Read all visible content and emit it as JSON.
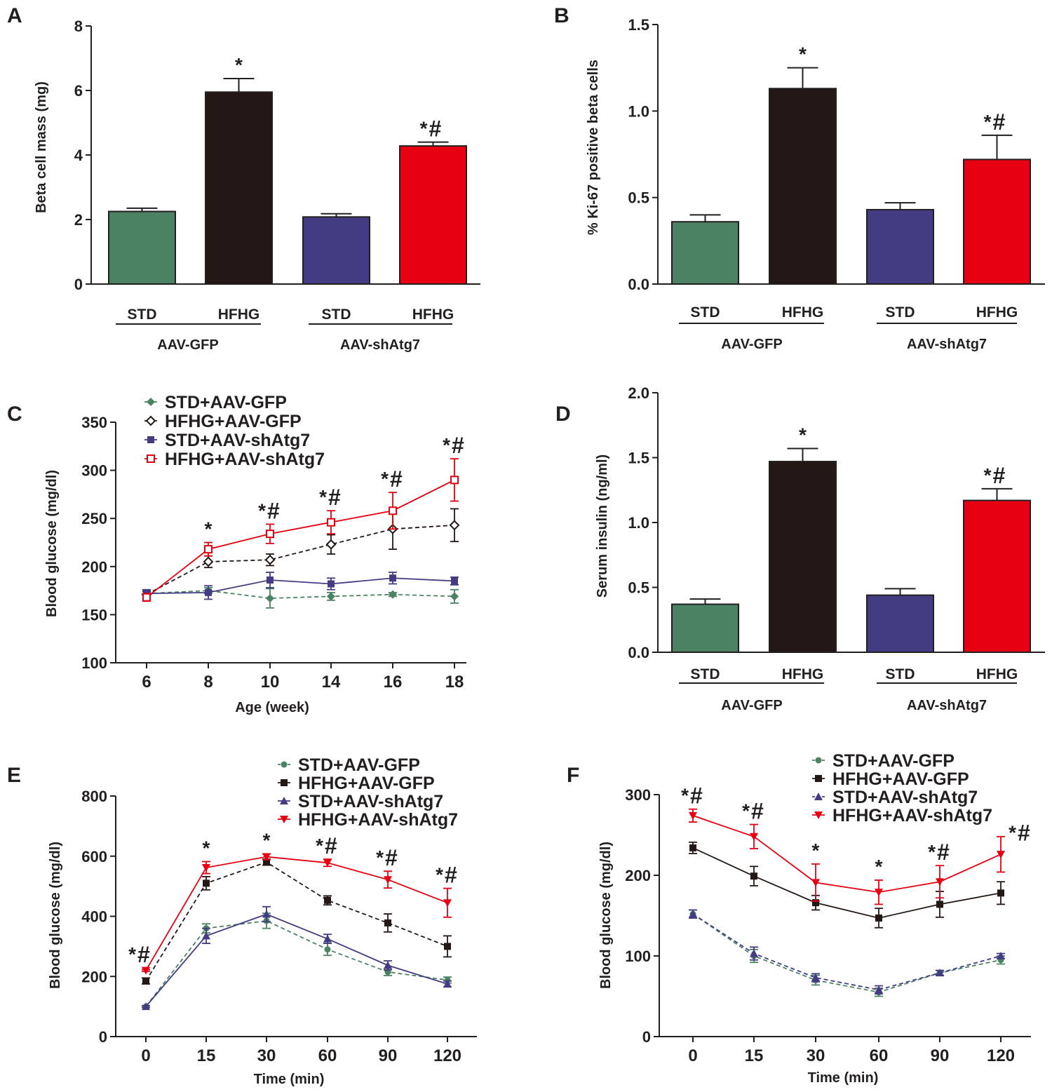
{
  "colors": {
    "green": "#4b8264",
    "black": "#231815",
    "blue": "#433c82",
    "red": "#e60012",
    "axis": "#231f20"
  },
  "chart_data": [
    {
      "panel": "A",
      "type": "bar",
      "ylabel": "Beta cell mass (mg)",
      "ylim": [
        0,
        8
      ],
      "yticks": [
        "0",
        "2",
        "4",
        "6",
        "8"
      ],
      "categories": [
        "STD",
        "HFHG",
        "STD",
        "HFHG"
      ],
      "groups": [
        "AAV-GFP",
        "AAV-shAtg7"
      ],
      "values": [
        2.25,
        5.95,
        2.08,
        4.28
      ],
      "errors": [
        0.1,
        0.42,
        0.1,
        0.12
      ],
      "colors": [
        "green",
        "black",
        "blue",
        "red"
      ],
      "annotations": [
        {
          "bar": 1,
          "star": "*",
          "hash": ""
        },
        {
          "bar": 3,
          "star": "*",
          "hash": "#"
        }
      ]
    },
    {
      "panel": "B",
      "type": "bar",
      "ylabel": "% Ki-67 positive beta cells",
      "ylim": [
        0,
        1.5
      ],
      "yticks": [
        "0.0",
        "0.5",
        "1.0",
        "1.5"
      ],
      "categories": [
        "STD",
        "HFHG",
        "STD",
        "HFHG"
      ],
      "groups": [
        "AAV-GFP",
        "AAV-shAtg7"
      ],
      "values": [
        0.36,
        1.13,
        0.43,
        0.72
      ],
      "errors": [
        0.04,
        0.12,
        0.04,
        0.14
      ],
      "colors": [
        "green",
        "black",
        "blue",
        "red"
      ],
      "annotations": [
        {
          "bar": 1,
          "star": "*",
          "hash": ""
        },
        {
          "bar": 3,
          "star": "*",
          "hash": "#"
        }
      ]
    },
    {
      "panel": "C",
      "type": "line",
      "xlabel": "Age (week)",
      "ylabel": "Blood glucose (mg/dl)",
      "ylim": [
        100,
        350
      ],
      "yticks": [
        "100",
        "150",
        "200",
        "250",
        "300",
        "350"
      ],
      "x": [
        "6",
        "8",
        "10",
        "14",
        "16",
        "18"
      ],
      "series": [
        {
          "name": "STD+AAV-GFP",
          "color": "green",
          "marker": "diamond",
          "dash": true,
          "values": [
            172,
            175,
            167,
            169,
            171,
            169
          ],
          "errors": [
            3,
            3,
            10,
            4,
            2,
            7
          ]
        },
        {
          "name": "HFHG+AAV-GFP",
          "color": "black",
          "marker": "diamond-open",
          "dash": true,
          "values": [
            171,
            205,
            207,
            223,
            239,
            243
          ],
          "errors": [
            3,
            6,
            6,
            10,
            21,
            17
          ]
        },
        {
          "name": "STD+AAV-shAtg7",
          "color": "blue",
          "marker": "square",
          "dash": false,
          "values": [
            172,
            173,
            186,
            182,
            188,
            185
          ],
          "errors": [
            4,
            7,
            8,
            6,
            6,
            4
          ]
        },
        {
          "name": "HFHG+AAV-shAtg7",
          "color": "red",
          "marker": "square-open",
          "dash": false,
          "values": [
            168,
            218,
            234,
            246,
            258,
            290
          ],
          "errors": [
            4,
            7,
            10,
            12,
            19,
            22
          ]
        }
      ],
      "annotations": [
        {
          "x": 1,
          "star": "*",
          "hash": ""
        },
        {
          "x": 2,
          "star": "*",
          "hash": "#"
        },
        {
          "x": 3,
          "star": "*",
          "hash": "#"
        },
        {
          "x": 4,
          "star": "*",
          "hash": "#"
        },
        {
          "x": 5,
          "star": "*",
          "hash": "#"
        }
      ],
      "legend": "top-left"
    },
    {
      "panel": "D",
      "type": "bar",
      "ylabel": "Serum insulin (ng/ml)",
      "ylim": [
        0,
        2
      ],
      "yticks": [
        "0.0",
        "0.5",
        "1.0",
        "1.5",
        "2.0"
      ],
      "categories": [
        "STD",
        "HFHG",
        "STD",
        "HFHG"
      ],
      "groups": [
        "AAV-GFP",
        "AAV-shAtg7"
      ],
      "values": [
        0.37,
        1.47,
        0.44,
        1.17
      ],
      "errors": [
        0.04,
        0.1,
        0.05,
        0.09
      ],
      "colors": [
        "green",
        "black",
        "blue",
        "red"
      ],
      "annotations": [
        {
          "bar": 1,
          "star": "*",
          "hash": ""
        },
        {
          "bar": 3,
          "star": "*",
          "hash": "#"
        }
      ]
    },
    {
      "panel": "E",
      "type": "line",
      "xlabel": "Time (min)",
      "ylabel": "Blood glucose (mg/dl)",
      "ylim": [
        0,
        800
      ],
      "yticks": [
        "0",
        "200",
        "400",
        "600",
        "800"
      ],
      "x": [
        "0",
        "15",
        "30",
        "60",
        "90",
        "120"
      ],
      "series": [
        {
          "name": "STD+AAV-GFP",
          "color": "green",
          "marker": "circle",
          "dash": true,
          "values": [
            100,
            360,
            385,
            290,
            215,
            188
          ],
          "errors": [
            3,
            15,
            25,
            20,
            12,
            10
          ]
        },
        {
          "name": "HFHG+AAV-GFP",
          "color": "black",
          "marker": "square",
          "dash": true,
          "values": [
            185,
            510,
            580,
            453,
            378,
            300
          ],
          "errors": [
            10,
            22,
            10,
            15,
            30,
            35
          ]
        },
        {
          "name": "STD+AAV-shAtg7",
          "color": "blue",
          "marker": "triangle",
          "dash": false,
          "values": [
            100,
            335,
            407,
            325,
            237,
            175
          ],
          "errors": [
            3,
            25,
            25,
            15,
            15,
            10
          ]
        },
        {
          "name": "HFHG+AAV-shAtg7",
          "color": "red",
          "marker": "triangle-down",
          "dash": false,
          "values": [
            220,
            562,
            598,
            578,
            522,
            445
          ],
          "errors": [
            3,
            20,
            10,
            12,
            28,
            48
          ]
        }
      ],
      "annotations": [
        {
          "x": 0,
          "star": "*",
          "hash": "#"
        },
        {
          "x": 1,
          "star": "*",
          "hash": ""
        },
        {
          "x": 2,
          "star": "*",
          "hash": ""
        },
        {
          "x": 3,
          "star": "*",
          "hash": "#"
        },
        {
          "x": 4,
          "star": "*",
          "hash": "#"
        },
        {
          "x": 5,
          "star": "*",
          "hash": "#"
        }
      ],
      "legend": "top-right"
    },
    {
      "panel": "F",
      "type": "line",
      "xlabel": "Time (min)",
      "ylabel": "Blood glucose (mg/dl)",
      "ylim": [
        0,
        300
      ],
      "yticks": [
        "0",
        "100",
        "200",
        "300"
      ],
      "x": [
        "0",
        "15",
        "30",
        "60",
        "90",
        "120"
      ],
      "series": [
        {
          "name": "STD+AAV-GFP",
          "color": "green",
          "marker": "circle",
          "dash": true,
          "values": [
            152,
            100,
            70,
            55,
            79,
            95
          ],
          "errors": [
            5,
            8,
            6,
            5,
            3,
            5
          ]
        },
        {
          "name": "HFHG+AAV-GFP",
          "color": "black",
          "marker": "square",
          "dash": false,
          "values": [
            234,
            199,
            166,
            147,
            164,
            178
          ],
          "errors": [
            7,
            12,
            9,
            12,
            16,
            14
          ]
        },
        {
          "name": "STD+AAV-shAtg7",
          "color": "blue",
          "marker": "triangle",
          "dash": true,
          "values": [
            152,
            103,
            73,
            58,
            79,
            100
          ],
          "errors": [
            5,
            8,
            5,
            5,
            3,
            3
          ]
        },
        {
          "name": "HFHG+AAV-shAtg7",
          "color": "red",
          "marker": "triangle-down",
          "dash": false,
          "values": [
            274,
            248,
            191,
            179,
            192,
            226
          ],
          "errors": [
            8,
            15,
            23,
            15,
            20,
            22
          ]
        }
      ],
      "annotations": [
        {
          "x": 0,
          "star": "*",
          "hash": "#"
        },
        {
          "x": 1,
          "star": "*",
          "hash": "#"
        },
        {
          "x": 2,
          "star": "*",
          "hash": ""
        },
        {
          "x": 3,
          "star": "*",
          "hash": ""
        },
        {
          "x": 4,
          "star": "*",
          "hash": "#"
        },
        {
          "x": 5,
          "star": "*",
          "hash": "#"
        }
      ],
      "legend": "top-right"
    }
  ]
}
